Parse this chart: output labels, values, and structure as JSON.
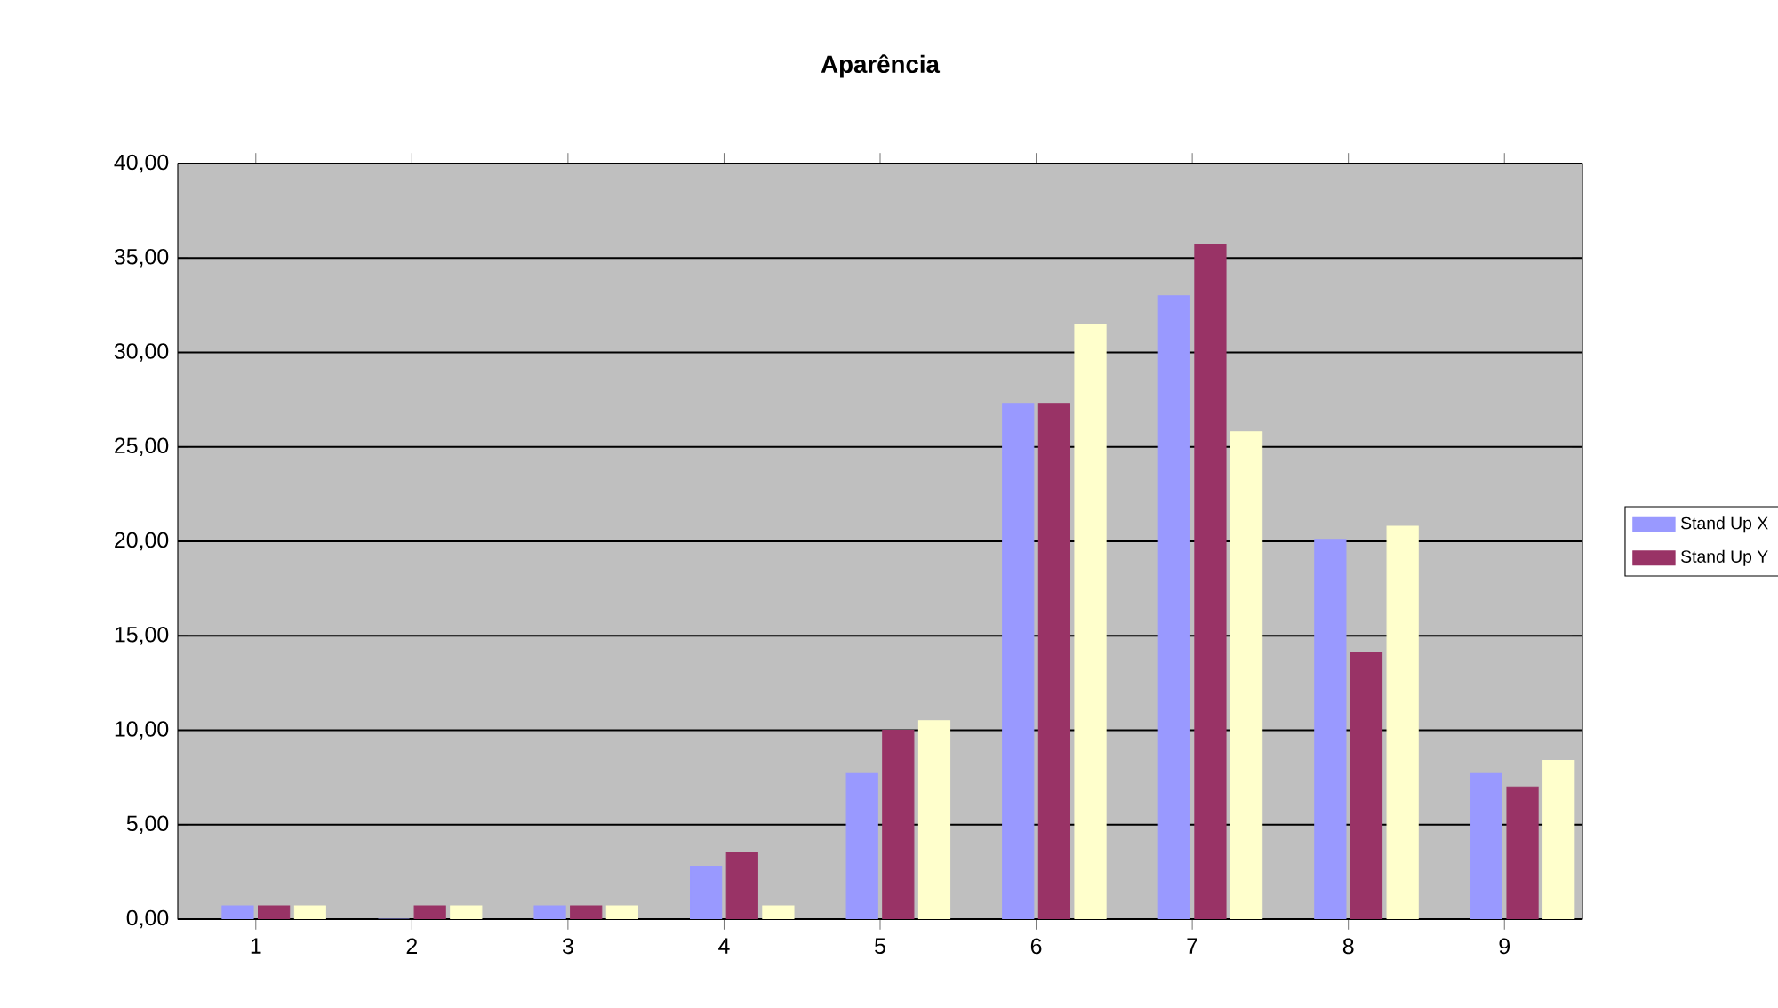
{
  "chart_data": {
    "type": "bar",
    "title": "Aparência",
    "categories": [
      "1",
      "2",
      "3",
      "4",
      "5",
      "6",
      "7",
      "8",
      "9"
    ],
    "series": [
      {
        "name": "Stand Up X",
        "color": "#9999ff",
        "values": [
          0.7,
          0,
          0.7,
          2.8,
          7.7,
          27.3,
          33,
          20.1,
          7.7
        ]
      },
      {
        "name": "Stand Up Y",
        "color": "#993366",
        "values": [
          0.7,
          0.7,
          0.7,
          3.5,
          10,
          27.3,
          35.7,
          14.1,
          7
        ]
      },
      {
        "color": "#ffffcc",
        "values": [
          0.7,
          0.7,
          0.7,
          0.7,
          10.5,
          31.5,
          25.8,
          20.8,
          8.4
        ]
      }
    ],
    "ylim": [
      0,
      40
    ],
    "yticks": [
      {
        "value": 0,
        "label": "0,00"
      },
      {
        "value": 5,
        "label": "5,00"
      },
      {
        "value": 10,
        "label": "10,00"
      },
      {
        "value": 15,
        "label": "15,00"
      },
      {
        "value": 20,
        "label": "20,00"
      },
      {
        "value": 25,
        "label": "25,00"
      },
      {
        "value": 30,
        "label": "30,00"
      },
      {
        "value": 35,
        "label": "35,00"
      },
      {
        "value": 40,
        "label": "40,00"
      }
    ],
    "grid": "y",
    "legend": "right"
  }
}
